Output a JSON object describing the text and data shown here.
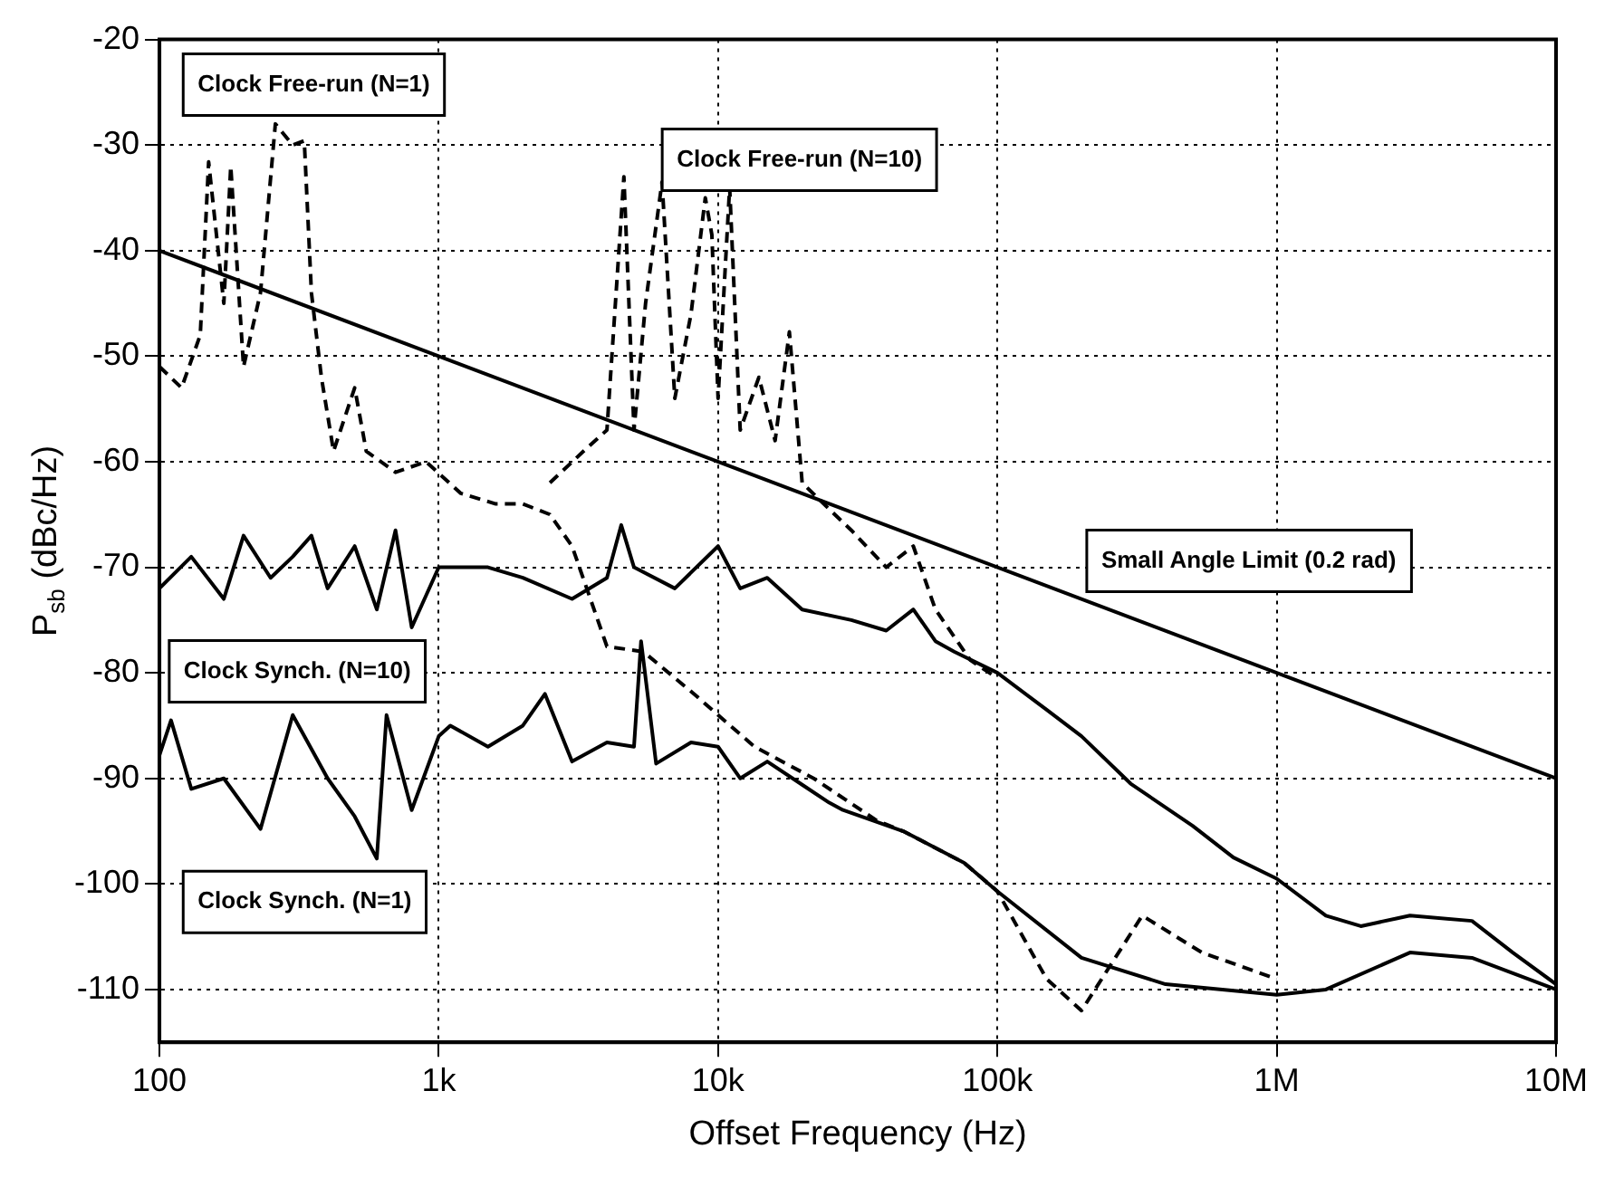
{
  "chart_data": {
    "type": "line",
    "xlabel": "Offset Frequency (Hz)",
    "ylabel": "P$_{sb}$ (dBc/Hz)",
    "log": "x",
    "grid": true,
    "legend": false,
    "marker": "none",
    "xlim": [
      100,
      10000000
    ],
    "xticks": [
      100,
      {
        "value": 1000,
        "label": "1k"
      },
      {
        "value": 10000,
        "label": "10k"
      },
      {
        "value": 100000,
        "label": "100k"
      },
      {
        "value": 1000000,
        "label": "1M"
      },
      {
        "value": 10000000,
        "label": "10M"
      }
    ],
    "ylim": [
      -115,
      -20
    ],
    "yticks": [
      -20,
      -30,
      -40,
      -50,
      -60,
      -70,
      -80,
      -90,
      -100,
      -110
    ],
    "series": [
      {
        "name": "Clock Free-run (N=1)",
        "color": "#000000",
        "line_style": "dashed",
        "x": [
          100,
          120,
          140,
          150,
          170,
          180,
          200,
          230,
          260,
          300,
          330,
          350,
          380,
          420,
          500,
          550,
          700,
          900,
          1200,
          1600,
          2000,
          2500,
          3000,
          4000,
          5400,
          8200,
          10000,
          13500,
          22000,
          37000,
          46000,
          76000,
          100000,
          150000,
          200000,
          330000,
          540000,
          1000000
        ],
        "values": [
          -51,
          -53,
          -48,
          -31.6,
          -45,
          -32,
          -51,
          -44,
          -28,
          -30,
          -29.6,
          -44,
          -52,
          -59,
          -53,
          -59,
          -61,
          -60,
          -63,
          -64,
          -64,
          -65,
          -68,
          -77.5,
          -78,
          -82,
          -84,
          -87,
          -90,
          -94,
          -95,
          -98,
          -100.7,
          -109,
          -112,
          -103,
          -106.5,
          -109
        ]
      },
      {
        "name": "Clock Free-run (N=10)",
        "color": "#000000",
        "line_style": "dashed",
        "x": [
          2500,
          3300,
          4000,
          4600,
          5000,
          5500,
          6300,
          7000,
          8000,
          9000,
          9500,
          10000,
          11000,
          12000,
          14000,
          16000,
          18000,
          20000,
          25000,
          30000,
          40000,
          50000,
          60000,
          80000,
          100000
        ],
        "values": [
          -62,
          -59,
          -57,
          -33,
          -57,
          -45,
          -33.5,
          -54,
          -46,
          -35,
          -38.5,
          -54,
          -34,
          -57,
          -52,
          -58,
          -47.7,
          -62,
          -64.5,
          -66.5,
          -70,
          -68,
          -74,
          -78.8,
          -80.5
        ]
      },
      {
        "name": "Clock Synch. (N=10)",
        "color": "#000000",
        "line_style": "solid",
        "x": [
          100,
          130,
          170,
          200,
          250,
          300,
          350,
          400,
          500,
          600,
          700,
          800,
          1000,
          1500,
          2000,
          3000,
          4000,
          4500,
          5000,
          7000,
          10000,
          12000,
          15000,
          20000,
          30000,
          40000,
          50000,
          60000,
          70000,
          100000,
          150000,
          200000,
          300000,
          500000,
          700000,
          1000000,
          1500000,
          2000000,
          3000000,
          5000000,
          7000000,
          10000000
        ],
        "values": [
          -72,
          -69,
          -73,
          -67,
          -71,
          -69,
          -67,
          -72,
          -68,
          -74,
          -66.5,
          -75.7,
          -70,
          -70,
          -71,
          -73,
          -71,
          -66,
          -70,
          -72,
          -68,
          -72,
          -71,
          -74,
          -75,
          -76,
          -74,
          -77,
          -78,
          -80,
          -83.5,
          -86,
          -90.5,
          -94.5,
          -97.5,
          -99.5,
          -103,
          -104,
          -103,
          -103.5,
          -106.5,
          -109.5
        ]
      },
      {
        "name": "Clock Synch. (N=1)",
        "color": "#000000",
        "line_style": "solid",
        "x": [
          100,
          110,
          130,
          170,
          230,
          300,
          400,
          500,
          600,
          650,
          800,
          1000,
          1100,
          1500,
          2000,
          2400,
          3000,
          4000,
          5000,
          5300,
          6000,
          8000,
          10000,
          12000,
          15000,
          20000,
          25000,
          28000,
          46000,
          76000,
          100000,
          200000,
          400000,
          1000000,
          1500000,
          3000000,
          5000000,
          10000000
        ],
        "values": [
          -87.8,
          -84.5,
          -91,
          -90,
          -94.8,
          -84,
          -90,
          -93.6,
          -97.6,
          -84,
          -93,
          -86,
          -85,
          -87,
          -85,
          -82,
          -88.4,
          -86.6,
          -87,
          -77,
          -88.6,
          -86.6,
          -87,
          -90,
          -88.4,
          -90.6,
          -92.3,
          -93,
          -95,
          -98,
          -100.7,
          -107,
          -109.5,
          -110.5,
          -110,
          -106.5,
          -107,
          -110
        ]
      },
      {
        "name": "Small Angle Limit (0.2 rad)",
        "color": "#000000",
        "line_style": "solid",
        "x": [
          100,
          10000000
        ],
        "values": [
          -40,
          -90
        ]
      }
    ]
  }
}
